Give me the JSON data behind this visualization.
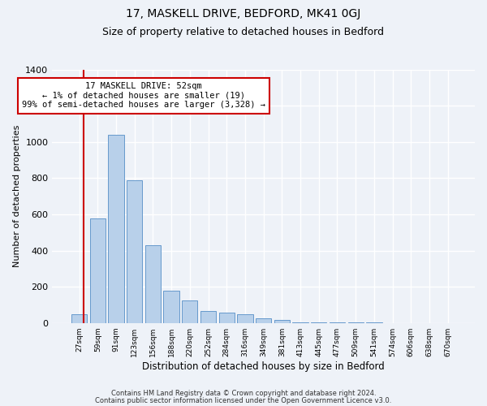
{
  "title": "17, MASKELL DRIVE, BEDFORD, MK41 0GJ",
  "subtitle": "Size of property relative to detached houses in Bedford",
  "xlabel": "Distribution of detached houses by size in Bedford",
  "ylabel": "Number of detached properties",
  "bar_labels": [
    "27sqm",
    "59sqm",
    "91sqm",
    "123sqm",
    "156sqm",
    "188sqm",
    "220sqm",
    "252sqm",
    "284sqm",
    "316sqm",
    "349sqm",
    "381sqm",
    "413sqm",
    "445sqm",
    "477sqm",
    "509sqm",
    "541sqm",
    "574sqm",
    "606sqm",
    "638sqm",
    "670sqm"
  ],
  "bar_values": [
    50,
    575,
    1040,
    790,
    430,
    178,
    125,
    65,
    55,
    50,
    25,
    15,
    5,
    2,
    2,
    1,
    1,
    0,
    0,
    0,
    0
  ],
  "bar_color": "#b8d0ea",
  "bar_edge_color": "#6699cc",
  "ylim": [
    0,
    1400
  ],
  "yticks": [
    0,
    200,
    400,
    600,
    800,
    1000,
    1200,
    1400
  ],
  "red_line_x": 0.24,
  "red_line_color": "#cc0000",
  "annotation_text": "17 MASKELL DRIVE: 52sqm\n← 1% of detached houses are smaller (19)\n99% of semi-detached houses are larger (3,328) →",
  "annotation_box_color": "#ffffff",
  "annotation_box_edge": "#cc0000",
  "footer1": "Contains HM Land Registry data © Crown copyright and database right 2024.",
  "footer2": "Contains public sector information licensed under the Open Government Licence v3.0.",
  "background_color": "#eef2f8",
  "grid_color": "#ffffff",
  "title_fontsize": 10,
  "subtitle_fontsize": 9,
  "bar_width": 0.85
}
